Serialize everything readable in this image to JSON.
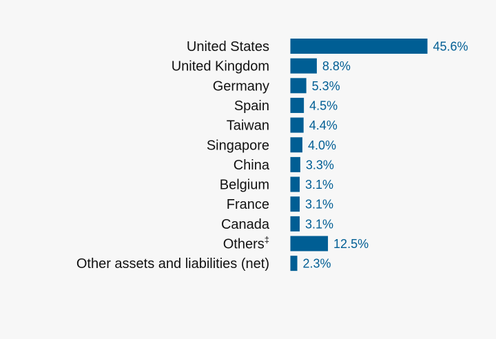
{
  "colors": {
    "bar": "#005e94",
    "value_label": "#005e94",
    "category_label": "#111111",
    "background": "#f7f7f7"
  },
  "chart_data": {
    "type": "bar",
    "orientation": "horizontal",
    "title": "",
    "xlabel": "",
    "ylabel": "",
    "grid": false,
    "legend": "none",
    "xlim": [
      0,
      45.6
    ],
    "categories": [
      "United States",
      "United Kingdom",
      "Germany",
      "Spain",
      "Taiwan",
      "Singapore",
      "China",
      "Belgium",
      "France",
      "Canada",
      "Others‡",
      "Other assets and liabilities (net)"
    ],
    "values": [
      45.6,
      8.8,
      5.3,
      4.5,
      4.4,
      4.0,
      3.3,
      3.1,
      3.1,
      3.1,
      12.5,
      2.3
    ],
    "data_labels": [
      "45.6%",
      "8.8%",
      "5.3%",
      "4.5%",
      "4.4%",
      "4.0%",
      "3.3%",
      "3.1%",
      "3.1%",
      "3.1%",
      "12.5%",
      "2.3%"
    ]
  }
}
